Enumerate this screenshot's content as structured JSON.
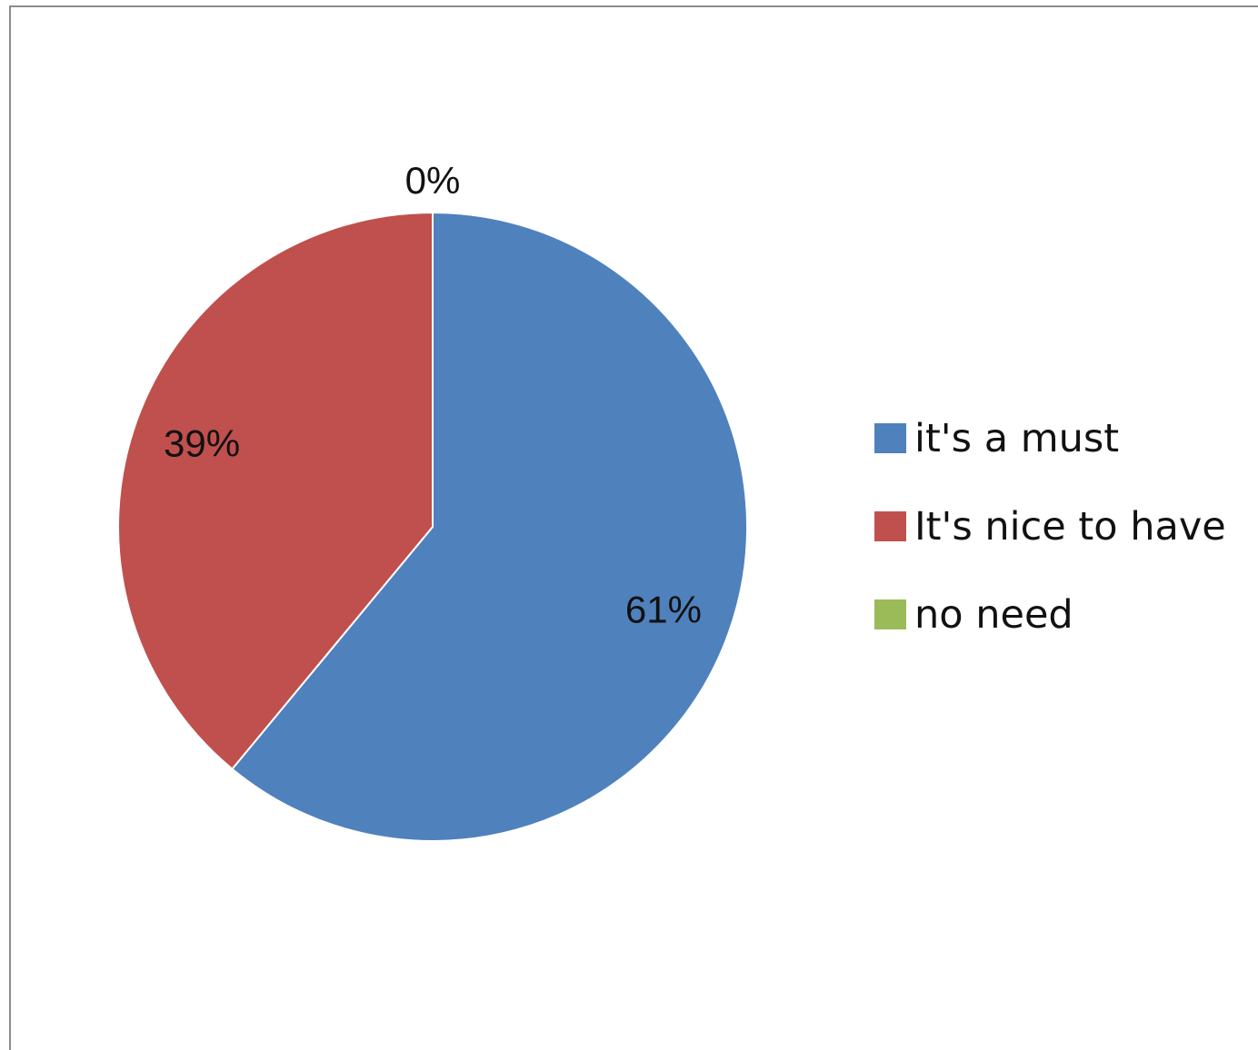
{
  "chart_data": {
    "type": "pie",
    "categories": [
      "it's a must",
      "It's nice to have",
      "no need"
    ],
    "values": [
      61,
      39,
      0
    ],
    "data_labels": [
      "61%",
      "39%",
      "0%"
    ],
    "colors": [
      "#4f81bd",
      "#c0504d",
      "#9bbb59"
    ],
    "legend_position": "right",
    "start_angle": "12 o'clock",
    "direction": "clockwise"
  }
}
